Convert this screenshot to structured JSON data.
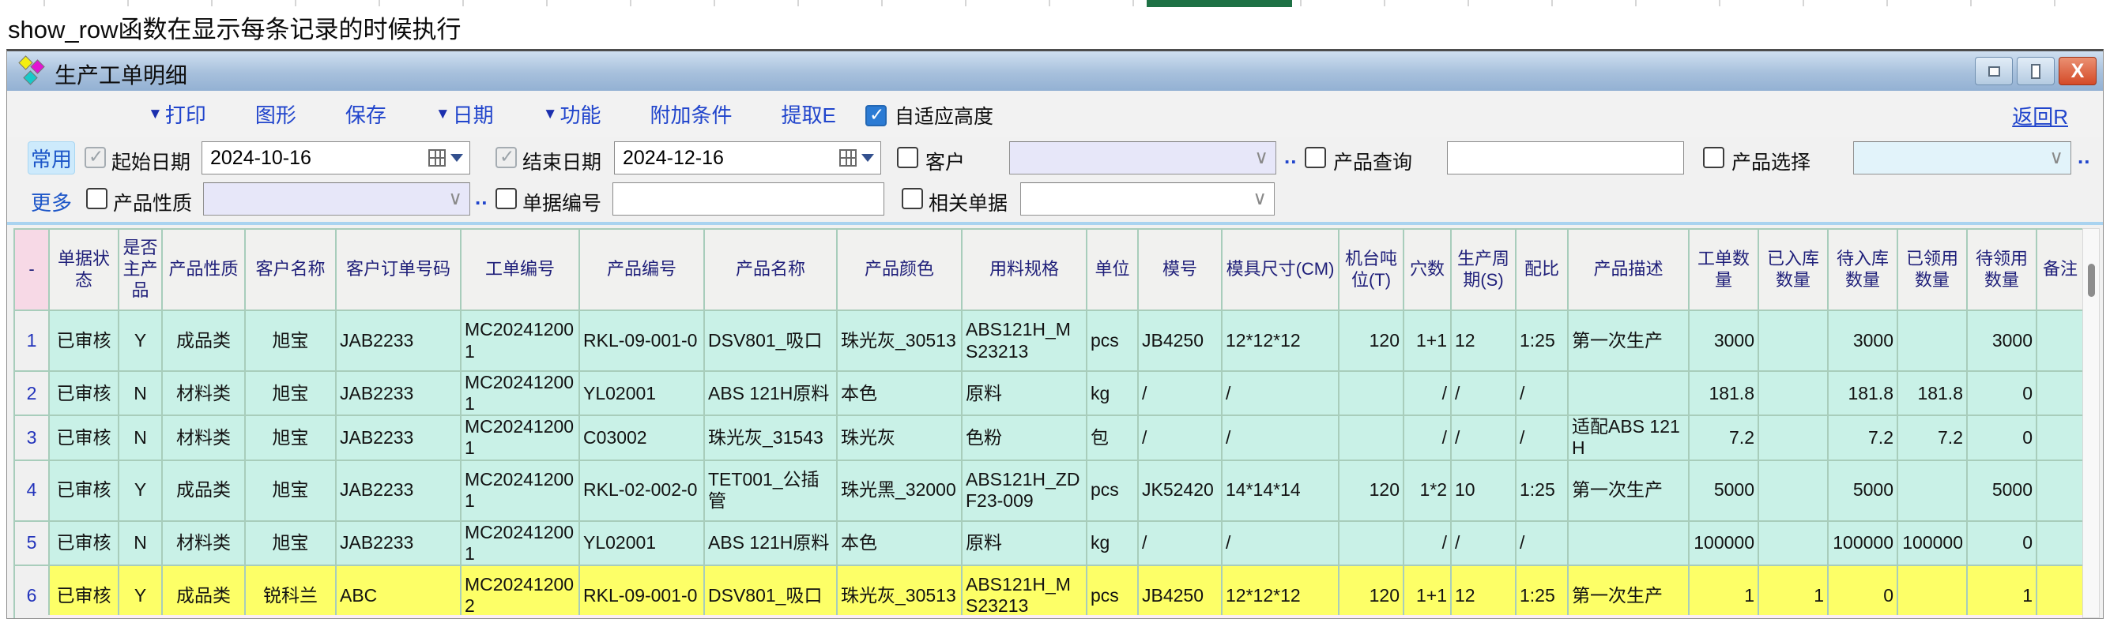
{
  "note_bar": {
    "text": "show_row函数在显示每条记录的时候执行"
  },
  "window": {
    "title": "生产工单明细",
    "close_glyph": "X"
  },
  "toolbar": {
    "items": [
      {
        "key": "print",
        "label": "打印",
        "has_arrow": true
      },
      {
        "key": "graph",
        "label": "图形",
        "has_arrow": false
      },
      {
        "key": "save",
        "label": "保存",
        "has_arrow": false
      },
      {
        "key": "date",
        "label": "日期",
        "has_arrow": true
      },
      {
        "key": "function",
        "label": "功能",
        "has_arrow": true
      },
      {
        "key": "extra-conditions",
        "label": "附加条件",
        "has_arrow": false
      },
      {
        "key": "extract",
        "label": "提取E",
        "has_arrow": false
      }
    ],
    "auto_fit": {
      "label": "自适应高度",
      "checked": true
    },
    "return_link": "返回R"
  },
  "filters": {
    "common_tab": "常用",
    "more_link": "更多",
    "ellipsis": "..",
    "start_date": {
      "label": "起始日期",
      "value": "2024-10-16",
      "checked": true,
      "disabled": true
    },
    "end_date": {
      "label": "结束日期",
      "value": "2024-12-16",
      "checked": true,
      "disabled": true
    },
    "customer": {
      "label": "客户",
      "value": "",
      "checked": false
    },
    "product_query": {
      "label": "产品查询",
      "value": "",
      "checked": false
    },
    "product_select": {
      "label": "产品选择",
      "value": "",
      "checked": false
    },
    "product_nature": {
      "label": "产品性质",
      "value": "",
      "checked": false
    },
    "doc_number": {
      "label": "单据编号",
      "value": "",
      "checked": false
    },
    "related_doc": {
      "label": "相关单据",
      "value": "",
      "checked": false
    }
  },
  "table": {
    "corner_label": "-",
    "rownum_width": 44,
    "columns": [
      {
        "key": "status",
        "label": "单据状态",
        "w": 88,
        "align": "c"
      },
      {
        "key": "is_main",
        "label": "是否主产品",
        "w": 55,
        "align": "c"
      },
      {
        "key": "nature",
        "label": "产品性质",
        "w": 105,
        "align": "c"
      },
      {
        "key": "customer",
        "label": "客户名称",
        "w": 115,
        "align": "c"
      },
      {
        "key": "customer_order_no",
        "label": "客户订单号码",
        "w": 158,
        "align": "l"
      },
      {
        "key": "work_order_no",
        "label": "工单编号",
        "w": 150,
        "align": "l"
      },
      {
        "key": "product_no",
        "label": "产品编号",
        "w": 158,
        "align": "l"
      },
      {
        "key": "product_name",
        "label": "产品名称",
        "w": 168,
        "align": "l"
      },
      {
        "key": "product_color",
        "label": "产品颜色",
        "w": 158,
        "align": "l"
      },
      {
        "key": "material_spec",
        "label": "用料规格",
        "w": 158,
        "align": "l"
      },
      {
        "key": "unit",
        "label": "单位",
        "w": 65,
        "align": "l"
      },
      {
        "key": "mold_no",
        "label": "模号",
        "w": 106,
        "align": "l"
      },
      {
        "key": "mold_size",
        "label": "模具尺寸(CM)",
        "w": 148,
        "align": "l"
      },
      {
        "key": "machine_tonnage",
        "label": "机台吨位(T)",
        "w": 82,
        "align": "r"
      },
      {
        "key": "cavities",
        "label": "穴数",
        "w": 60,
        "align": "r"
      },
      {
        "key": "cycle",
        "label": "生产周期(S)",
        "w": 82,
        "align": "l"
      },
      {
        "key": "ratio",
        "label": "配比",
        "w": 66,
        "align": "l"
      },
      {
        "key": "description",
        "label": "产品描述",
        "w": 153,
        "align": "l"
      },
      {
        "key": "order_qty",
        "label": "工单数量",
        "w": 88,
        "align": "r"
      },
      {
        "key": "in_stock_qty",
        "label": "已入库数量",
        "w": 88,
        "align": "r"
      },
      {
        "key": "pending_in_qty",
        "label": "待入库数量",
        "w": 88,
        "align": "r"
      },
      {
        "key": "issued_qty",
        "label": "已领用数量",
        "w": 88,
        "align": "r"
      },
      {
        "key": "pending_issue_qty",
        "label": "待领用数量",
        "w": 88,
        "align": "r"
      },
      {
        "key": "remark",
        "label": "备注",
        "w": 60,
        "align": "l"
      }
    ],
    "rows": [
      {
        "num": "1",
        "style": "cyan",
        "h": 77,
        "cells": [
          "已审核",
          "Y",
          "成品类",
          "旭宝",
          "JAB2233",
          "MC202412001",
          "RKL-09-001-0",
          "DSV801_吸口",
          "珠光灰_30513",
          "ABS121H_MS23213",
          "pcs",
          "JB4250",
          "12*12*12",
          "120",
          "1+1",
          "12",
          "1:25",
          "第一次生产",
          "3000",
          "",
          {
            "t": "3000",
            "c": "red"
          },
          "",
          {
            "t": "3000",
            "c": "red"
          },
          ""
        ]
      },
      {
        "num": "2",
        "style": "cyan",
        "h": 52,
        "cells": [
          "已审核",
          "N",
          "材料类",
          "旭宝",
          "JAB2233",
          "MC202412001",
          "YL02001",
          "ABS 121H原料",
          "本色",
          "原料",
          "kg",
          "/",
          "/",
          "",
          "/",
          "/",
          "/",
          "",
          "181.8",
          "",
          {
            "t": "181.8",
            "c": "red"
          },
          {
            "t": "181.8",
            "c": "blue"
          },
          {
            "t": "0",
            "c": "red"
          },
          ""
        ]
      },
      {
        "num": "3",
        "style": "cyan",
        "h": 52,
        "cells": [
          "已审核",
          "N",
          "材料类",
          "旭宝",
          "JAB2233",
          "MC202412001",
          "C03002",
          "珠光灰_31543",
          "珠光灰",
          "色粉",
          "包",
          "/",
          "/",
          "",
          "/",
          "/",
          "/",
          "适配ABS 121H",
          "7.2",
          "",
          {
            "t": "7.2",
            "c": "red"
          },
          {
            "t": "7.2",
            "c": "blue"
          },
          {
            "t": "0",
            "c": "red"
          },
          ""
        ]
      },
      {
        "num": "4",
        "style": "cyan",
        "h": 77,
        "cells": [
          "已审核",
          "Y",
          "成品类",
          "旭宝",
          "JAB2233",
          "MC202412001",
          "RKL-02-002-0",
          "TET001_公插管",
          "珠光黑_32000",
          "ABS121H_ZDF23-009",
          "pcs",
          "JK52420",
          "14*14*14",
          "120",
          "1*2",
          "10",
          "1:25",
          "第一次生产",
          "5000",
          "",
          {
            "t": "5000",
            "c": "red"
          },
          "",
          {
            "t": "5000",
            "c": "red"
          },
          ""
        ]
      },
      {
        "num": "5",
        "style": "cyan",
        "h": 52,
        "cells": [
          "已审核",
          "N",
          "材料类",
          "旭宝",
          "JAB2233",
          "MC202412001",
          "YL02001",
          "ABS 121H原料",
          "本色",
          "原料",
          "kg",
          "/",
          "/",
          "",
          "/",
          "/",
          "/",
          "",
          "100000",
          "",
          {
            "t": "100000",
            "c": "red"
          },
          {
            "t": "100000",
            "c": "blue"
          },
          {
            "t": "0",
            "c": "red"
          },
          ""
        ]
      },
      {
        "num": "6",
        "style": "yellow",
        "h": 77,
        "cells": [
          "已审核",
          "Y",
          "成品类",
          "锐科兰",
          "ABC",
          "MC202412002",
          "RKL-09-001-0",
          "DSV801_吸口",
          "珠光灰_30513",
          "ABS121H_MS23213",
          "pcs",
          "JB4250",
          "12*12*12",
          "120",
          "1+1",
          "12",
          "1:25",
          "第一次生产",
          "1",
          {
            "t": "1",
            "c": "blue"
          },
          {
            "t": "0",
            "c": "red"
          },
          "",
          {
            "t": "1",
            "c": "red"
          },
          ""
        ]
      }
    ]
  },
  "colors": {
    "accent_blue": "#2145cc",
    "row_cyan": "#c9f1e7",
    "row_yellow": "#fdff67",
    "qty_red": "#e60000",
    "qty_blue": "#1515dd",
    "header_text": "#20207a",
    "excel_green": "#1e7145"
  }
}
